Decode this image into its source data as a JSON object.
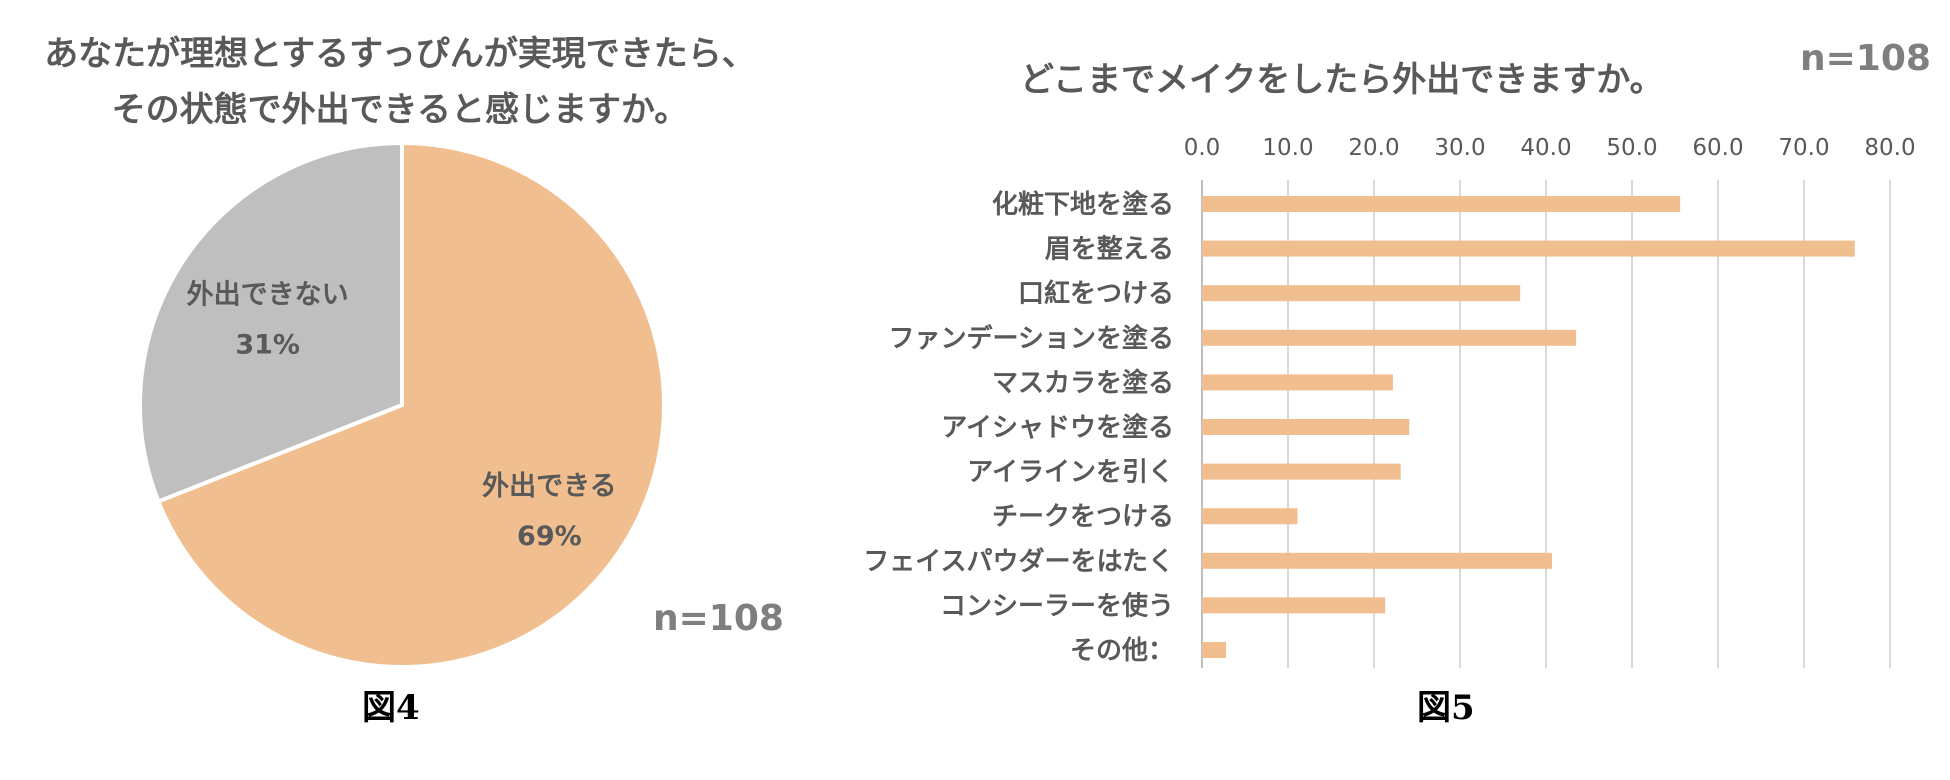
{
  "figure4": {
    "title_line1": "あなたが理想とするすっぴんが実現できたら、",
    "title_line2": "その状態で外出できると感じますか。",
    "n_label": "n=108",
    "caption": "図4"
  },
  "figure5": {
    "title": "どこまでメイクをしたら外出できますか。",
    "n_label": "n=108",
    "caption": "図5"
  },
  "colors": {
    "orange": "#f0be8f",
    "gray": "#bfbfbf",
    "text": "#595959",
    "grid": "#d9d9d9"
  },
  "chart_data": [
    {
      "type": "pie",
      "title": "あなたが理想とするすっぴんが実現できたら、その状態で外出できると感じますか。",
      "slices": [
        {
          "label": "外出できる",
          "value": 69,
          "value_label": "69%",
          "color": "#f0be8f"
        },
        {
          "label": "外出できない",
          "value": 31,
          "value_label": "31%",
          "color": "#bfbfbf"
        }
      ],
      "n": "n=108"
    },
    {
      "type": "bar",
      "orientation": "horizontal",
      "title": "どこまでメイクをしたら外出できますか。",
      "categories": [
        "化粧下地を塗る",
        "眉を整える",
        "口紅をつける",
        "ファンデーションを塗る",
        "マスカラを塗る",
        "アイシャドウを塗る",
        "アイラインを引く",
        "チークをつける",
        "フェイスパウダーをはたく",
        "コンシーラーを使う",
        "その他："
      ],
      "values": [
        55.6,
        75.9,
        37.0,
        43.5,
        22.2,
        24.1,
        23.1,
        11.1,
        40.7,
        21.3,
        2.8
      ],
      "xlim": [
        0,
        80
      ],
      "ticks": [
        "0.0",
        "10.0",
        "20.0",
        "30.0",
        "40.0",
        "50.0",
        "60.0",
        "70.0",
        "80.0"
      ],
      "tick_values": [
        0,
        10,
        20,
        30,
        40,
        50,
        60,
        70,
        80
      ],
      "grid": true,
      "n": "n=108"
    }
  ]
}
